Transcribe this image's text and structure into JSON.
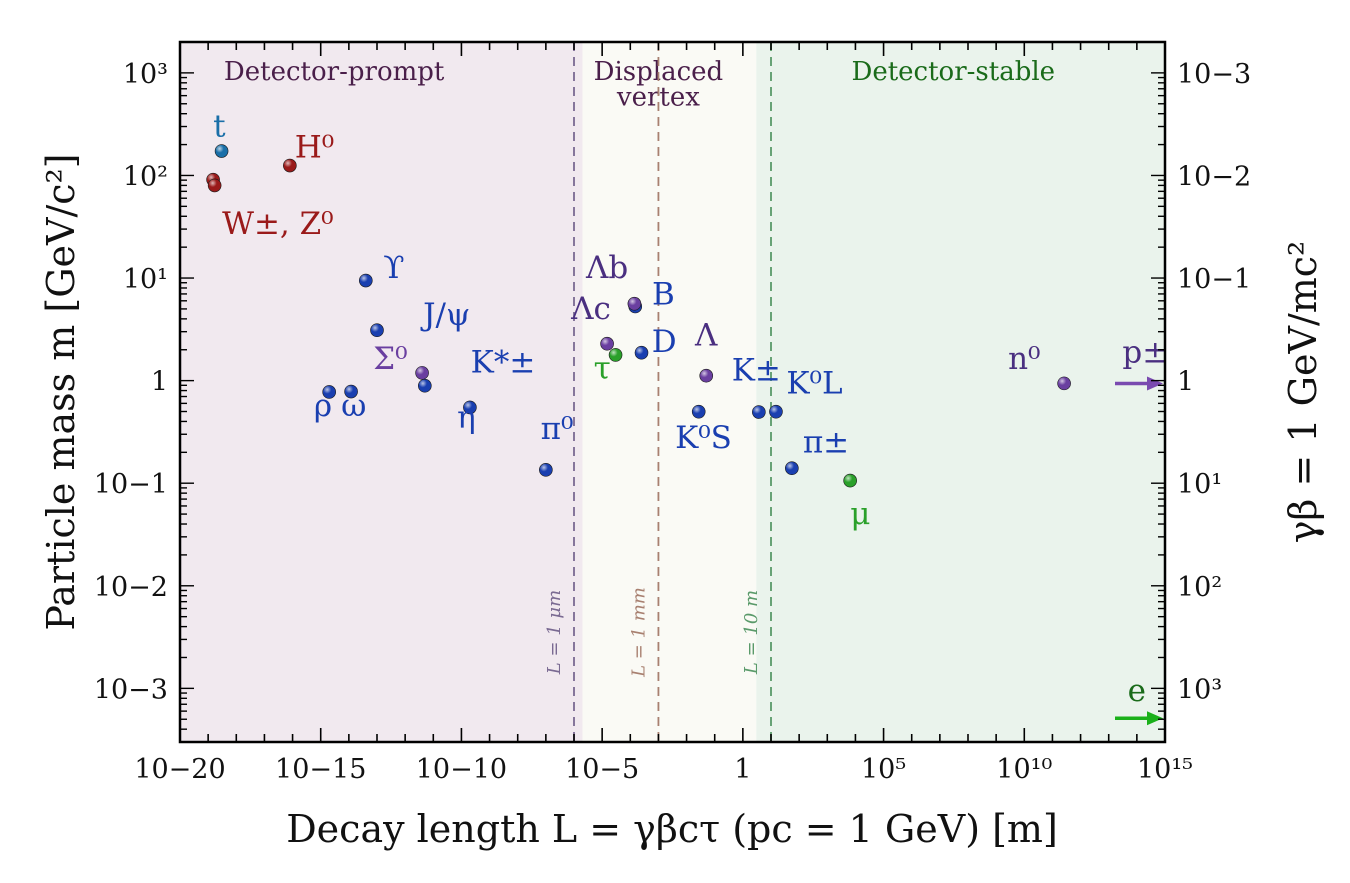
{
  "chart_data": {
    "type": "scatter",
    "xscale": "log",
    "yscale": "log",
    "xlim": [
      1e-20,
      1000000000000000.0
    ],
    "ylim": [
      0.0003,
      2000
    ],
    "xlabel": "Decay length L = γβcτ (pc = 1 GeV) [m]",
    "ylabel": "Particle mass m [GeV/c²]",
    "ylabel_right": "γβ = 1 GeV/mc²",
    "x_ticks": [
      {
        "value": 1e-20,
        "label": "10−20"
      },
      {
        "value": 1e-15,
        "label": "10−15"
      },
      {
        "value": 1e-10,
        "label": "10−10"
      },
      {
        "value": 1e-05,
        "label": "10−5"
      },
      {
        "value": 1,
        "label": "1"
      },
      {
        "value": 100000.0,
        "label": "10⁵"
      },
      {
        "value": 10000000000.0,
        "label": "10¹⁰"
      },
      {
        "value": 1000000000000000.0,
        "label": "10¹⁵"
      }
    ],
    "y_ticks": [
      {
        "value": 1000,
        "label": "10³"
      },
      {
        "value": 100,
        "label": "10²"
      },
      {
        "value": 10,
        "label": "10¹"
      },
      {
        "value": 1,
        "label": "1"
      },
      {
        "value": 0.1,
        "label": "10−1"
      },
      {
        "value": 0.01,
        "label": "10−2"
      },
      {
        "value": 0.001,
        "label": "10−3"
      }
    ],
    "right_ticks": [
      {
        "value": 1000,
        "label": "10−3"
      },
      {
        "value": 100,
        "label": "10−2"
      },
      {
        "value": 10,
        "label": "10−1"
      },
      {
        "value": 1,
        "label": "1"
      },
      {
        "value": 0.1,
        "label": "10¹"
      },
      {
        "value": 0.01,
        "label": "10²"
      },
      {
        "value": 0.001,
        "label": "10³"
      }
    ],
    "regions": [
      {
        "name": "Detector-prompt",
        "x_from": 1e-20,
        "x_to": 2e-06,
        "color": "#f1e9ef",
        "label_color": "#4a1f4a"
      },
      {
        "name": "Displaced vertex",
        "x_from": 2e-06,
        "x_to": 3,
        "color": "#fafaf5",
        "label_color": "#4a1f4a"
      },
      {
        "name": "Detector-stable",
        "x_from": 3,
        "x_to": 1000000000000000.0,
        "color": "#eaf3ec",
        "label_color": "#1a6b1a"
      }
    ],
    "region_label_lines": [
      {
        "text": "Detector-prompt",
        "x": 3e-15,
        "y": 850,
        "color": "#4a1f4a"
      },
      {
        "text": "Displaced",
        "x": 0.001,
        "y": 850,
        "color": "#4a1f4a"
      },
      {
        "text": "vertex",
        "x": 0.001,
        "y": 480,
        "color": "#4a1f4a"
      },
      {
        "text": "Detector-stable",
        "x": 30000000.0,
        "y": 850,
        "color": "#1a6b1a"
      }
    ],
    "vlines": [
      {
        "x": 1e-06,
        "label": "L = 1 μm",
        "color": "#7a6a92"
      },
      {
        "x": 0.001,
        "label": "L = 1 mm",
        "color": "#a88070"
      },
      {
        "x": 10,
        "label": "L = 10 m",
        "color": "#5a9a6a"
      }
    ],
    "points": [
      {
        "x": 3e-19,
        "y": 173,
        "color": "#1a6fa8"
      },
      {
        "x": 8e-17,
        "y": 125,
        "color": "#9a1a1a"
      },
      {
        "x": 1.5e-19,
        "y": 91,
        "color": "#9a1a1a"
      },
      {
        "x": 1.7e-19,
        "y": 80,
        "color": "#9a1a1a"
      },
      {
        "x": 4e-14,
        "y": 9.46,
        "color": "#1a3fb0"
      },
      {
        "x": 1e-13,
        "y": 3.1,
        "color": "#1a3fb0"
      },
      {
        "x": 2e-15,
        "y": 0.775,
        "color": "#1a3fb0"
      },
      {
        "x": 1.2e-14,
        "y": 0.783,
        "color": "#1a3fb0"
      },
      {
        "x": 4e-12,
        "y": 1.19,
        "color": "#6a3fa0"
      },
      {
        "x": 5e-12,
        "y": 0.892,
        "color": "#1a3fb0"
      },
      {
        "x": 2e-10,
        "y": 0.548,
        "color": "#1a3fb0"
      },
      {
        "x": 1e-07,
        "y": 0.135,
        "color": "#1a3fb0"
      },
      {
        "x": 1.5e-05,
        "y": 2.29,
        "color": "#6a3fa0"
      },
      {
        "x": 3e-05,
        "y": 1.78,
        "color": "#2aa02a"
      },
      {
        "x": 0.00015,
        "y": 5.28,
        "color": "#1a3fb0"
      },
      {
        "x": 0.00014,
        "y": 5.62,
        "color": "#6a3fa0"
      },
      {
        "x": 0.00025,
        "y": 1.87,
        "color": "#1a3fb0"
      },
      {
        "x": 0.05,
        "y": 1.116,
        "color": "#6a3fa0"
      },
      {
        "x": 0.027,
        "y": 0.498,
        "color": "#1a3fb0"
      },
      {
        "x": 3.7,
        "y": 0.494,
        "color": "#1a3fb0"
      },
      {
        "x": 15,
        "y": 0.498,
        "color": "#1a3fb0"
      },
      {
        "x": 55,
        "y": 0.14,
        "color": "#1a3fb0"
      },
      {
        "x": 6500,
        "y": 0.106,
        "color": "#2aa02a"
      },
      {
        "x": 260000000000.0,
        "y": 0.94,
        "color": "#6a3fa0"
      }
    ],
    "annotations": [
      {
        "text": "t",
        "x": 2.5e-19,
        "y": 240,
        "color": "#1a6fa8"
      },
      {
        "text": "H⁰",
        "x": 6e-16,
        "y": 150,
        "color": "#9a1a1a"
      },
      {
        "text": "W±, Z⁰",
        "x": 3e-17,
        "y": 27,
        "color": "#9a1a1a"
      },
      {
        "text": "ϒ",
        "x": 4e-13,
        "y": 10,
        "color": "#1a3fb0"
      },
      {
        "text": "J/ψ",
        "x": 3e-11,
        "y": 3.5,
        "color": "#1a3fb0"
      },
      {
        "text": "Σ⁰",
        "x": 3e-13,
        "y": 1.3,
        "color": "#6a3fa0"
      },
      {
        "text": "K*±",
        "x": 3e-09,
        "y": 1.2,
        "color": "#1a3fb0"
      },
      {
        "text": "ρ",
        "x": 1.2e-15,
        "y": 0.45,
        "color": "#1a3fb0"
      },
      {
        "text": "ω",
        "x": 1.5e-14,
        "y": 0.45,
        "color": "#1a3fb0"
      },
      {
        "text": "η",
        "x": 1.5e-10,
        "y": 0.35,
        "color": "#1a3fb0"
      },
      {
        "text": "π⁰",
        "x": 2.5e-07,
        "y": 0.27,
        "color": "#1a3fb0"
      },
      {
        "text": "Λb",
        "x": 1.5e-05,
        "y": 10,
        "color": "#4a2f80"
      },
      {
        "text": "Λc",
        "x": 4e-06,
        "y": 4,
        "color": "#4a2f80"
      },
      {
        "text": "B",
        "x": 0.0015,
        "y": 5.5,
        "color": "#1a3fb0"
      },
      {
        "text": "D",
        "x": 0.0016,
        "y": 1.9,
        "color": "#1a3fb0"
      },
      {
        "text": "τ",
        "x": 1e-05,
        "y": 1.05,
        "color": "#2aa02a"
      },
      {
        "text": "Λ",
        "x": 0.05,
        "y": 2.2,
        "color": "#4a2f80"
      },
      {
        "text": "K±",
        "x": 3,
        "y": 1.0,
        "color": "#1a3fb0"
      },
      {
        "text": "K⁰L",
        "x": 350,
        "y": 0.75,
        "color": "#1a3fb0"
      },
      {
        "text": "K⁰S",
        "x": 0.04,
        "y": 0.22,
        "color": "#1a3fb0"
      },
      {
        "text": "π±",
        "x": 900,
        "y": 0.2,
        "color": "#1a3fb0"
      },
      {
        "text": "μ",
        "x": 15000.0,
        "y": 0.04,
        "color": "#2aa02a"
      },
      {
        "text": "n⁰",
        "x": 10000000000.0,
        "y": 1.3,
        "color": "#4a2f80"
      },
      {
        "text": "p±",
        "x": 200000000000000.0,
        "y": 1.5,
        "color": "#4a2f80"
      },
      {
        "text": "e",
        "x": 100000000000000.0,
        "y": 0.00075,
        "color": "#1a6b1a"
      }
    ],
    "edge_arrows": [
      {
        "label": "p±",
        "y": 0.938,
        "color": "#7a4ab0"
      },
      {
        "label": "e",
        "y": 0.000511,
        "color": "#1ab01a"
      }
    ]
  }
}
